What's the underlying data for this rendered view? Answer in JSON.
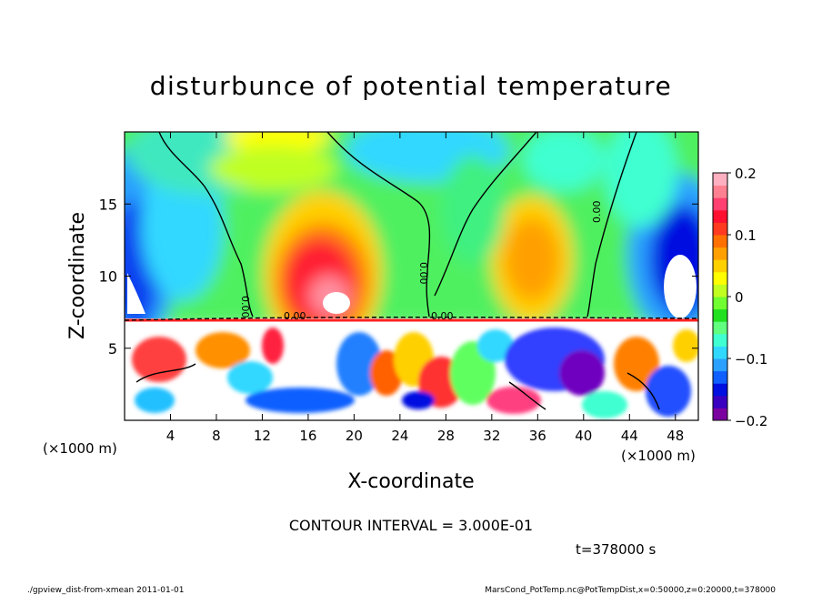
{
  "chart_data": {
    "type": "heatmap",
    "title": "disturbunce of potential temperature",
    "xlabel": "X-coordinate",
    "ylabel": "Z-coordinate",
    "x_unit_left": "(×1000 m)",
    "x_unit_right": "(×1000 m)",
    "xlim": [
      0,
      50
    ],
    "ylim": [
      0,
      20
    ],
    "x_ticks": [
      4,
      8,
      12,
      16,
      20,
      24,
      28,
      32,
      36,
      40,
      44,
      48
    ],
    "y_ticks": [
      5,
      10,
      15
    ],
    "colorbar": {
      "ticks": [
        "0.2",
        "0.1",
        "0",
        "−0.1",
        "−0.2"
      ],
      "tick_values": [
        0.2,
        0.1,
        0,
        -0.1,
        -0.2
      ],
      "range": [
        -0.2,
        0.2
      ],
      "colors": [
        "#7b00a0",
        "#3a00c0",
        "#0010e0",
        "#1060ff",
        "#2aa0ff",
        "#30d8ff",
        "#40ffd0",
        "#60ff80",
        "#20e020",
        "#70ff30",
        "#c0ff20",
        "#ffff00",
        "#ffd000",
        "#ffa000",
        "#ff7000",
        "#ff3a20",
        "#ff1030",
        "#ff4070",
        "#ff8090",
        "#ffb0c0"
      ]
    },
    "contour_labels": [
      "0.00",
      "0.00",
      "0.00",
      "0.00",
      "0.00"
    ],
    "contour_interval_text": "CONTOUR INTERVAL = 3.000E-01",
    "time_text": "t=378000 s",
    "footer_left": "./gpview_dist-from-xmean   2011-01-01",
    "footer_right": "MarsCond_PotTemp.nc@PotTempDist,x=0:50000,z=0:20000,t=378000"
  }
}
